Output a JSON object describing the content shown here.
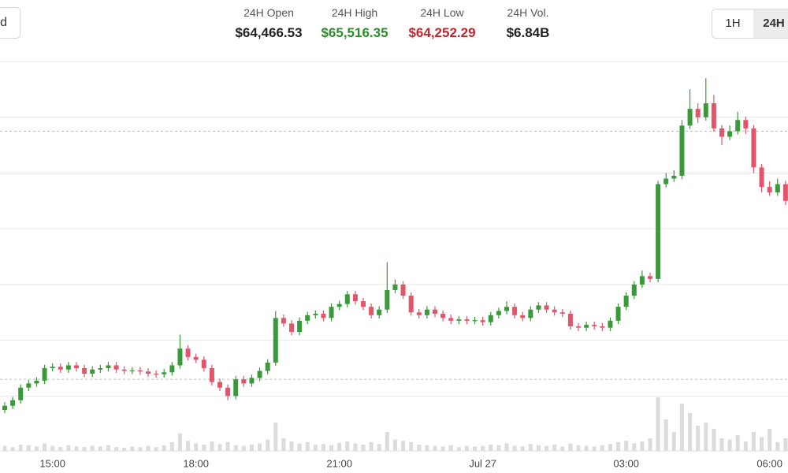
{
  "header": {
    "left_button": "d",
    "stats": [
      {
        "label": "24H Open",
        "value": "$64,466.53",
        "color": "#222222"
      },
      {
        "label": "24H High",
        "value": "$65,516.35",
        "color": "#2e8b2e"
      },
      {
        "label": "24H Low",
        "value": "$64,252.29",
        "color": "#c0262d"
      },
      {
        "label": "24H Vol.",
        "value": "$6.84B",
        "color": "#222222"
      }
    ],
    "range_buttons": [
      "1H",
      "24H"
    ],
    "selected_range": "24H"
  },
  "chart_data": {
    "type": "candlestick",
    "up_color": "#3a9a3a",
    "down_color": "#e0566a",
    "volume_color": "#dcdcdc",
    "grid": true,
    "ylim": [
      64103,
      65500
    ],
    "yticks": [
      64300,
      64500,
      64700,
      64900,
      65100,
      65300,
      65500
    ],
    "reference_lines": [
      65250,
      64360
    ],
    "volume_lim": [
      0,
      100
    ],
    "categories": [
      null,
      null,
      null,
      null,
      null,
      null,
      "15:00",
      null,
      null,
      null,
      null,
      null,
      null,
      null,
      null,
      null,
      null,
      null,
      null,
      null,
      null,
      null,
      null,
      null,
      "18:00",
      null,
      null,
      null,
      null,
      null,
      null,
      null,
      null,
      null,
      null,
      null,
      null,
      null,
      null,
      null,
      null,
      null,
      "21:00",
      null,
      null,
      null,
      null,
      null,
      null,
      null,
      null,
      null,
      null,
      null,
      null,
      null,
      null,
      null,
      null,
      null,
      "Jul 27",
      null,
      null,
      null,
      null,
      null,
      null,
      null,
      null,
      null,
      null,
      null,
      null,
      null,
      null,
      null,
      null,
      null,
      "03:00",
      null,
      null,
      null,
      null,
      null,
      null,
      null,
      null,
      null,
      null,
      null,
      null,
      null,
      null,
      null,
      null,
      null,
      "06:00",
      null,
      null
    ],
    "open": [
      64250,
      64265,
      64285,
      64330,
      64345,
      64355,
      64400,
      64405,
      64395,
      64410,
      64400,
      64380,
      64395,
      64400,
      64410,
      64395,
      64390,
      64392,
      64388,
      64380,
      64378,
      64385,
      64410,
      64470,
      64440,
      64430,
      64400,
      64350,
      64330,
      64300,
      64360,
      64345,
      64365,
      64390,
      64420,
      64580,
      64560,
      64530,
      64570,
      64590,
      64595,
      64580,
      64620,
      64630,
      64665,
      64640,
      64620,
      64590,
      64610,
      64680,
      64700,
      64660,
      64600,
      64590,
      64610,
      64595,
      64580,
      64570,
      64575,
      64570,
      64572,
      64565,
      64590,
      64605,
      64620,
      64590,
      64580,
      64610,
      64625,
      64610,
      64600,
      64595,
      64550,
      64545,
      64555,
      64550,
      64545,
      64570,
      64620,
      64660,
      64700,
      64730,
      64720,
      65060,
      65080,
      65090,
      65270,
      65330,
      65300,
      65350,
      65260,
      65230,
      65250,
      65290,
      65260,
      65120,
      65050,
      65030,
      65060
    ],
    "high": [
      64278,
      64297,
      64342,
      64357,
      64367,
      64412,
      64417,
      64417,
      64422,
      64422,
      64412,
      64407,
      64412,
      64422,
      64422,
      64407,
      64404,
      64404,
      64400,
      64392,
      64397,
      64422,
      64520,
      64482,
      64452,
      64442,
      64412,
      64362,
      64342,
      64372,
      64372,
      64377,
      64402,
      64432,
      64605,
      64592,
      64572,
      64582,
      64602,
      64607,
      64607,
      64632,
      64642,
      64677,
      64677,
      64652,
      64632,
      64622,
      64780,
      64718,
      64712,
      64672,
      64612,
      64622,
      64622,
      64607,
      64592,
      64587,
      64587,
      64584,
      64584,
      64602,
      64617,
      64640,
      64632,
      64602,
      64622,
      64637,
      64637,
      64622,
      64612,
      64607,
      64562,
      64567,
      64567,
      64562,
      64582,
      64632,
      64672,
      64712,
      64750,
      64742,
      65072,
      65100,
      65110,
      65290,
      65400,
      65350,
      65440,
      65380,
      65272,
      65270,
      65320,
      65302,
      65272,
      65132,
      65070,
      65080,
      65072
    ],
    "low": [
      64238,
      64253,
      64273,
      64318,
      64333,
      64343,
      64388,
      64383,
      64383,
      64388,
      64368,
      64368,
      64383,
      64388,
      64383,
      64378,
      64378,
      64376,
      64368,
      64366,
      64366,
      64373,
      64398,
      64428,
      64418,
      64388,
      64338,
      64318,
      64285,
      64288,
      64333,
      64333,
      64353,
      64378,
      64408,
      64548,
      64518,
      64518,
      64558,
      64578,
      64568,
      64568,
      64608,
      64618,
      64628,
      64608,
      64578,
      64578,
      64598,
      64668,
      64648,
      64588,
      64578,
      64578,
      64583,
      64568,
      64558,
      64558,
      64558,
      64558,
      64553,
      64553,
      64578,
      64593,
      64578,
      64568,
      64568,
      64598,
      64598,
      64588,
      64583,
      64538,
      64533,
      64533,
      64538,
      64533,
      64533,
      64558,
      64608,
      64648,
      64688,
      64708,
      64708,
      65048,
      65068,
      65078,
      65258,
      65280,
      65288,
      65248,
      65200,
      65218,
      65238,
      65240,
      65100,
      65030,
      65018,
      65018,
      64985
    ],
    "close": [
      64265,
      64285,
      64330,
      64345,
      64355,
      64400,
      64405,
      64395,
      64410,
      64400,
      64380,
      64395,
      64400,
      64410,
      64395,
      64390,
      64392,
      64388,
      64380,
      64378,
      64385,
      64410,
      64470,
      64440,
      64430,
      64400,
      64350,
      64330,
      64300,
      64360,
      64345,
      64365,
      64390,
      64420,
      64580,
      64560,
      64530,
      64570,
      64590,
      64595,
      64580,
      64620,
      64630,
      64665,
      64640,
      64620,
      64590,
      64610,
      64680,
      64700,
      64660,
      64600,
      64590,
      64610,
      64595,
      64580,
      64570,
      64575,
      64570,
      64572,
      64565,
      64590,
      64605,
      64620,
      64590,
      64580,
      64610,
      64625,
      64610,
      64600,
      64595,
      64550,
      64545,
      64555,
      64550,
      64545,
      64570,
      64620,
      64660,
      64700,
      64730,
      64720,
      65060,
      65080,
      65090,
      65270,
      65330,
      65300,
      65350,
      65260,
      65230,
      65250,
      65290,
      65260,
      65120,
      65050,
      65030,
      65060,
      65000
    ],
    "volume": [
      8,
      6,
      10,
      9,
      7,
      12,
      8,
      6,
      9,
      7,
      6,
      8,
      7,
      9,
      6,
      5,
      7,
      6,
      8,
      6,
      9,
      14,
      28,
      16,
      12,
      10,
      15,
      11,
      14,
      9,
      8,
      10,
      12,
      18,
      45,
      20,
      15,
      12,
      14,
      10,
      11,
      9,
      13,
      15,
      12,
      10,
      14,
      11,
      30,
      18,
      16,
      14,
      10,
      9,
      8,
      7,
      9,
      6,
      8,
      7,
      8,
      10,
      9,
      12,
      8,
      7,
      11,
      9,
      8,
      10,
      7,
      12,
      9,
      8,
      7,
      9,
      11,
      14,
      16,
      12,
      15,
      20,
      85,
      50,
      30,
      75,
      60,
      40,
      45,
      35,
      20,
      18,
      25,
      15,
      30,
      22,
      35,
      14,
      20
    ]
  }
}
